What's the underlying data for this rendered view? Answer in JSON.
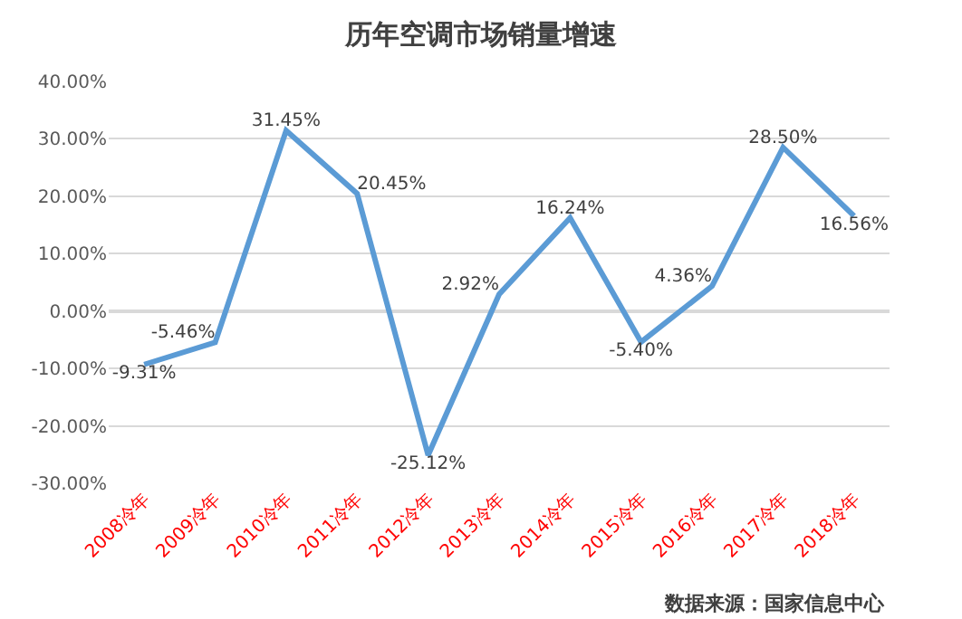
{
  "chart_data": {
    "type": "line",
    "title": "历年空调市场销量增速",
    "categories": [
      "2008冷年",
      "2009冷年",
      "2010冷年",
      "2011冷年",
      "2012冷年",
      "2013冷年",
      "2014冷年",
      "2015冷年",
      "2016冷年",
      "2017冷年",
      "2018冷年"
    ],
    "series": [
      {
        "color": "#5b9bd5",
        "values": [
          -9.31,
          -5.46,
          31.45,
          20.45,
          -25.12,
          2.92,
          16.24,
          -5.4,
          4.36,
          28.5,
          16.56
        ],
        "value_labels": [
          "-9.31%",
          "-5.46%",
          "31.45%",
          "20.45%",
          "-25.12%",
          "2.92%",
          "16.24%",
          "-5.40%",
          "4.36%",
          "28.50%",
          "16.56%"
        ]
      }
    ],
    "ylim": [
      -30,
      40
    ],
    "yticks": [
      {
        "value": -30,
        "label": "-30.00%"
      },
      {
        "value": -20,
        "label": "-20.00%"
      },
      {
        "value": -10,
        "label": "-10.00%"
      },
      {
        "value": 0,
        "label": "0.00%"
      },
      {
        "value": 10,
        "label": "10.00%"
      },
      {
        "value": 20,
        "label": "20.00%"
      },
      {
        "value": 30,
        "label": "30.00%"
      },
      {
        "value": 40,
        "label": "40.00%"
      }
    ],
    "grid": "y",
    "marker": "none",
    "line_style": "solid",
    "annotations": [
      "数据来源：国家信息中心"
    ]
  }
}
